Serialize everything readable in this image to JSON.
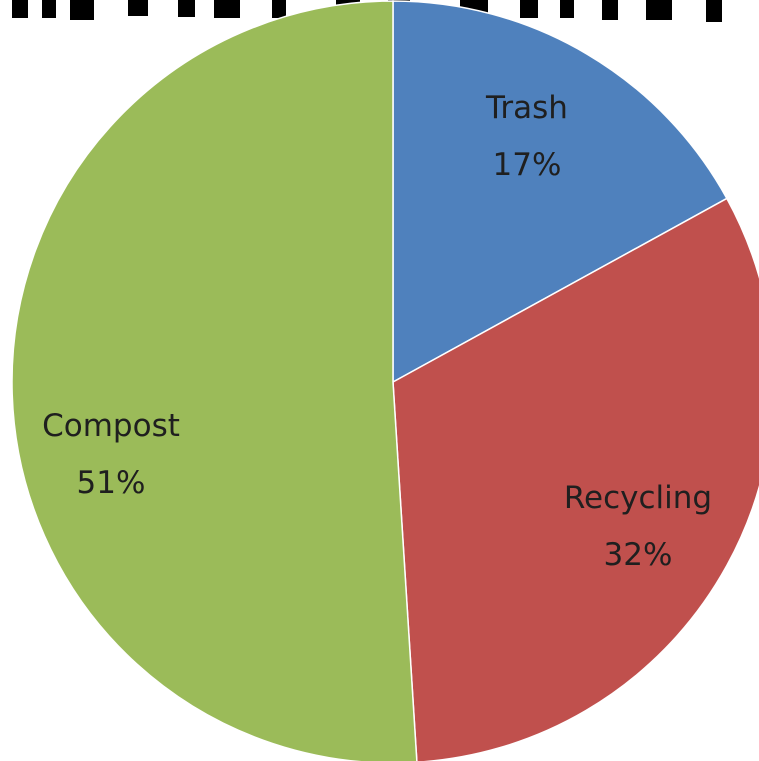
{
  "chart_data": {
    "type": "pie",
    "title": "",
    "slices": [
      {
        "label": "Trash",
        "value": 17,
        "percent_label": "17%",
        "color": "#4f81bd"
      },
      {
        "label": "Recycling",
        "value": 32,
        "percent_label": "32%",
        "color": "#c0504d"
      },
      {
        "label": "Compost",
        "value": 51,
        "percent_label": "51%",
        "color": "#9bbb59"
      }
    ],
    "start_angle_degrees": 0,
    "direction": "clockwise",
    "legend": "none"
  }
}
